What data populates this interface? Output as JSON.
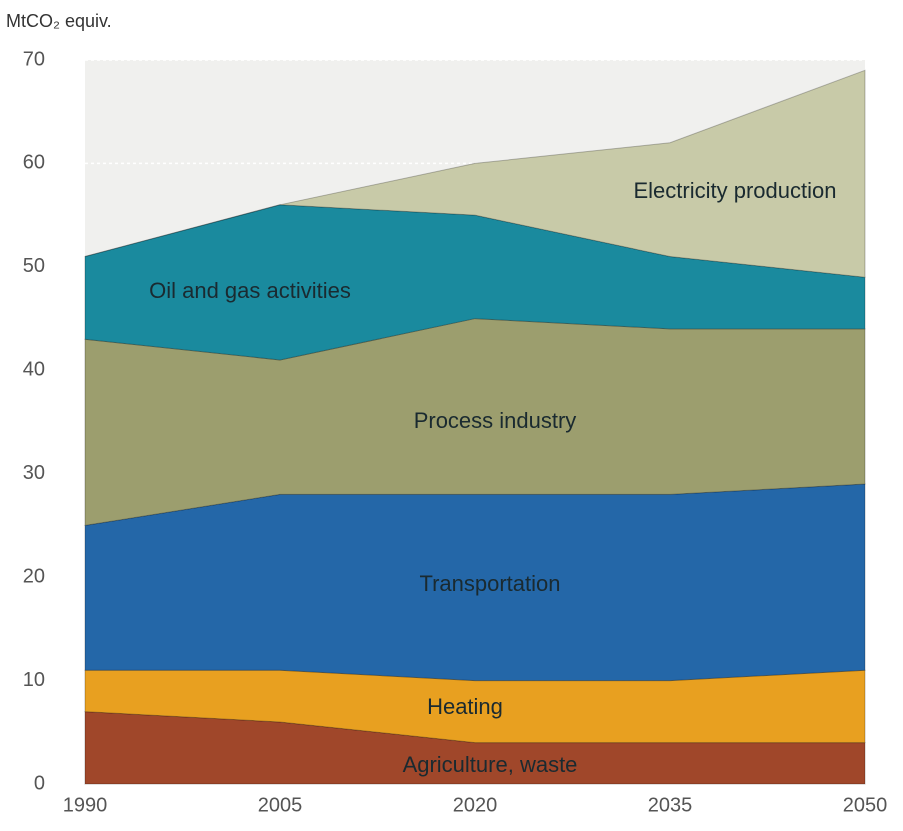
{
  "chart_data": {
    "type": "stacked_area",
    "y_label": "MtCO₂ equiv.",
    "x": [
      1990,
      2005,
      2020,
      2035,
      2050
    ],
    "xlim": [
      1990,
      2050
    ],
    "xticks": [
      1990,
      2005,
      2020,
      2035,
      2050
    ],
    "ylim": [
      0,
      70
    ],
    "yticks": [
      0,
      10,
      20,
      30,
      40,
      50,
      60,
      70
    ],
    "grid": true,
    "series": [
      {
        "name": "Agriculture, waste",
        "color": "#a0472a",
        "values": [
          7,
          6,
          4,
          4,
          4
        ]
      },
      {
        "name": "Heating",
        "color": "#e8a020",
        "values": [
          4,
          5,
          6,
          6,
          7
        ]
      },
      {
        "name": "Transportation",
        "color": "#2467a8",
        "values": [
          14,
          17,
          18,
          18,
          18
        ]
      },
      {
        "name": "Process industry",
        "color": "#9c9e6e",
        "values": [
          18,
          13,
          17,
          16,
          15
        ]
      },
      {
        "name": "Oil and gas activities",
        "color": "#1a8a9e",
        "values": [
          8,
          15,
          10,
          7,
          5
        ]
      },
      {
        "name": "Electricity production",
        "color": "#c8caa8",
        "values": [
          0,
          0,
          5,
          11,
          20
        ]
      }
    ]
  }
}
